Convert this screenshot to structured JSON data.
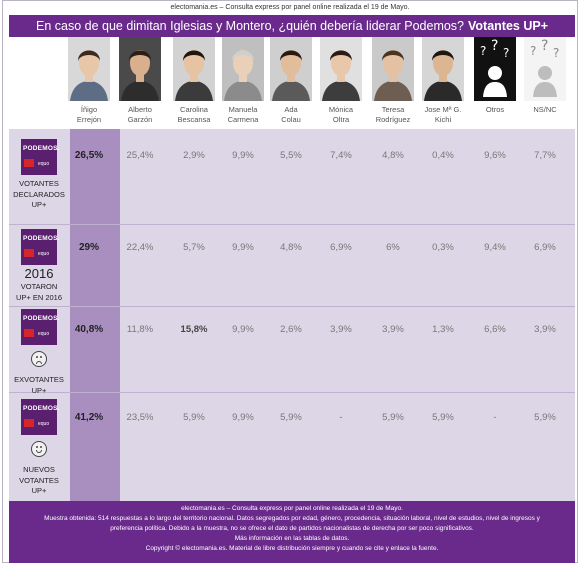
{
  "source_top": "electomania.es – Consulta express por panel online realizada el 19 de Mayo.",
  "title": "En caso de que dimitan Iglesias y Montero, ¿quién debería liderar Podemos?",
  "title_bold": "Votantes UP+",
  "candidates": [
    {
      "name1": "Íñigo",
      "name2": "Errejón"
    },
    {
      "name1": "Alberto",
      "name2": "Garzón"
    },
    {
      "name1": "Carolina",
      "name2": "Bescansa"
    },
    {
      "name1": "Manuela",
      "name2": "Carmena"
    },
    {
      "name1": "Ada",
      "name2": "Colau"
    },
    {
      "name1": "Mónica",
      "name2": "Oltra"
    },
    {
      "name1": "Teresa",
      "name2": "Rodríguez"
    },
    {
      "name1": "Jose Mª G.",
      "name2": "Kichi"
    },
    {
      "name1": "Otros",
      "name2": ""
    },
    {
      "name1": "NS/NC",
      "name2": ""
    }
  ],
  "logo": {
    "text": "PODEMOS.",
    "sub": "equo"
  },
  "rows": [
    {
      "year": "",
      "label": [
        "VOTANTES",
        "DECLARADOS",
        "UP+"
      ],
      "face": "",
      "values": [
        "26,5%",
        "25,4%",
        "2,9%",
        "9,9%",
        "5,5%",
        "7,4%",
        "4,8%",
        "0,4%",
        "9,6%",
        "7,7%"
      ],
      "bold": []
    },
    {
      "year": "2016",
      "label": [
        "VOTARON",
        "UP+ EN 2016"
      ],
      "face": "",
      "values": [
        "29%",
        "22,4%",
        "5,7%",
        "9,9%",
        "4,8%",
        "6,9%",
        "6%",
        "0,3%",
        "9,4%",
        "6,9%"
      ],
      "bold": []
    },
    {
      "year": "",
      "label": [
        "EXVOTANTES",
        "UP+"
      ],
      "face": "sad",
      "values": [
        "40,8%",
        "11,8%",
        "15,8%",
        "9,9%",
        "2,6%",
        "3,9%",
        "3,9%",
        "1,3%",
        "6,6%",
        "3,9%"
      ],
      "bold": [
        2
      ]
    },
    {
      "year": "",
      "label": [
        "NUEVOS",
        "VOTANTES",
        "UP+"
      ],
      "face": "happy",
      "values": [
        "41,2%",
        "23,5%",
        "5,9%",
        "9,9%",
        "5,9%",
        "-",
        "5,9%",
        "5,9%",
        "-",
        "5,9%"
      ],
      "bold": []
    }
  ],
  "footer": [
    "electomania.es – Consulta express por panel online realizada el 19 de Mayo.",
    "Muestra obtenida: 514 respuestas a lo largo del territorio nacional. Datos segregados por edad, género, procedencia, situación laboral, nivel de estudios, nivel de ingresos y",
    "preferencia política. Debido a la muestra, no se ofrece el dato de partidos nacionalistas de derecha por ser poco significativos.",
    "Más información en las tablas de datos.",
    "Copyright © electomania.es. Material de libre distribución siempre y cuando se cite y enlace la fuente."
  ],
  "colors": {
    "brand": "#6a2a8c",
    "highlight_column": "#a88fc0",
    "table_bg": "#ddd6e6"
  }
}
